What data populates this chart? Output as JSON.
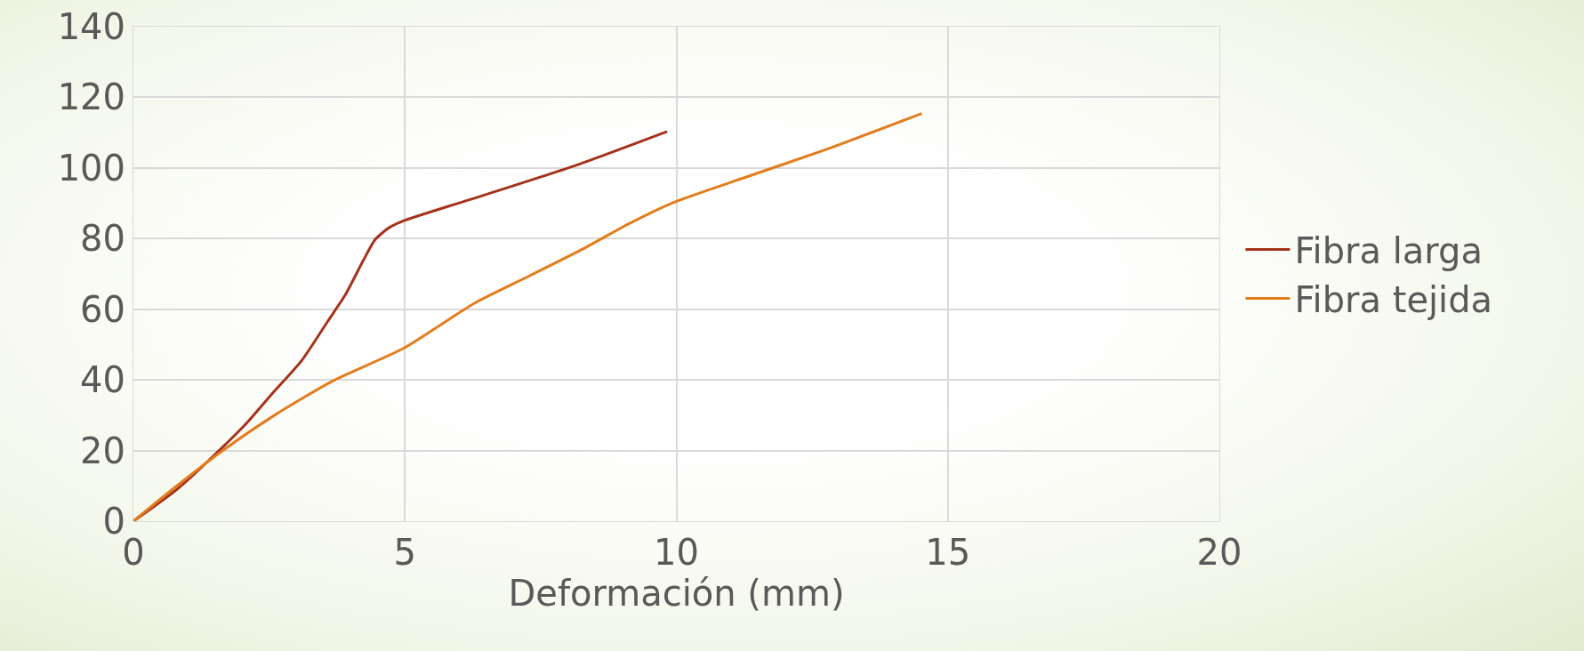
{
  "chart_data": {
    "type": "line",
    "xlabel": "Deformación (mm)",
    "xlim": [
      0,
      20
    ],
    "xticks": [
      0,
      5,
      10,
      15,
      20
    ],
    "ylim": [
      0,
      140
    ],
    "yticks": [
      0,
      20,
      40,
      60,
      80,
      100,
      120,
      140
    ],
    "grid": true,
    "legend": "right",
    "marker": "none",
    "line_style": "solid",
    "series": [
      {
        "name": "Fibra larga",
        "color": "#a5321b",
        "x": [
          0,
          0.8,
          1.62,
          2.1,
          2.55,
          3.1,
          3.58,
          3.9,
          4.23,
          4.45,
          4.7,
          4.97,
          6.5,
          8.2,
          9.83
        ],
        "values": [
          0,
          9,
          20.6,
          28,
          36,
          45.5,
          56.6,
          64,
          73.7,
          79.7,
          83,
          85,
          92.5,
          101,
          110.3
        ]
      },
      {
        "name": "Fibra tejida",
        "color": "#e37c1c",
        "x": [
          0,
          0.8,
          1.62,
          2.6,
          3.67,
          4.97,
          6.28,
          7.3,
          8.32,
          9.1,
          9.96,
          11.3,
          12.79,
          14.52
        ],
        "values": [
          0,
          10,
          19.7,
          30,
          39.7,
          48.9,
          61.7,
          69.5,
          77.4,
          84,
          90.3,
          97.5,
          105.4,
          115.4
        ]
      }
    ]
  }
}
